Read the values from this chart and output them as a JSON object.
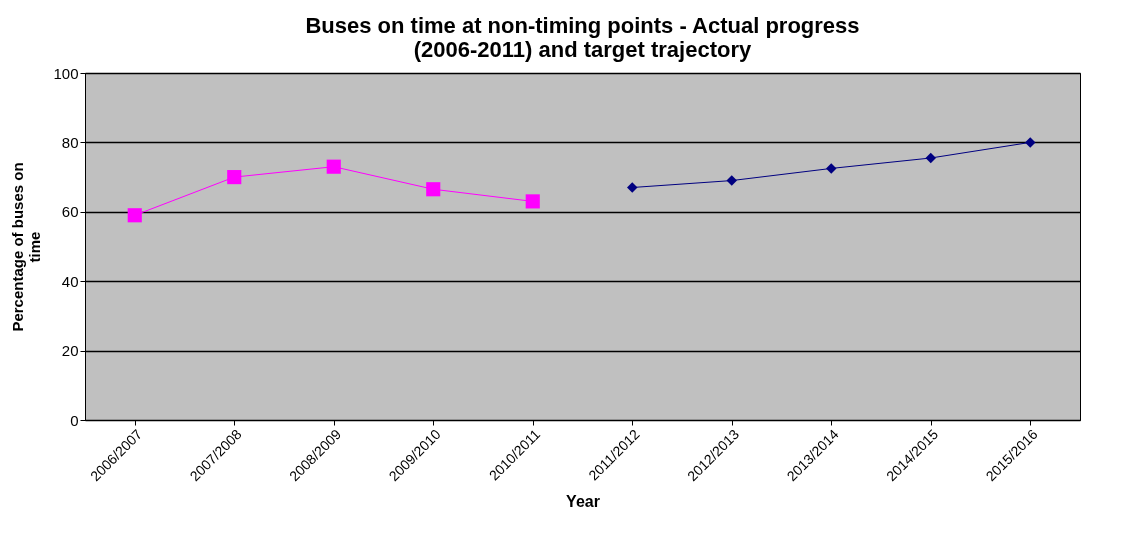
{
  "chart_data": {
    "type": "line",
    "title": "Buses on time at non-timing points - Actual progress (2006-2011) and target trajectory",
    "xlabel": "Year",
    "ylabel": "Percentage of buses on time",
    "categories": [
      "2006/2007",
      "2007/2008",
      "2008/2009",
      "2009/2010",
      "2010/2011",
      "2011/2012",
      "2012/2013",
      "2013/2014",
      "2014/2015",
      "2015/2016"
    ],
    "series": [
      {
        "color": "#ff00ff",
        "marker": "square",
        "values": [
          59,
          70,
          73,
          66.5,
          63,
          null,
          null,
          null,
          null,
          null
        ]
      },
      {
        "color": "#000080",
        "marker": "diamond",
        "values": [
          null,
          null,
          null,
          null,
          null,
          67,
          69,
          72.5,
          75.5,
          80
        ]
      }
    ],
    "ylim": [
      0,
      100
    ],
    "yticks": [
      0,
      20,
      40,
      60,
      80,
      100
    ],
    "grid": "y"
  }
}
